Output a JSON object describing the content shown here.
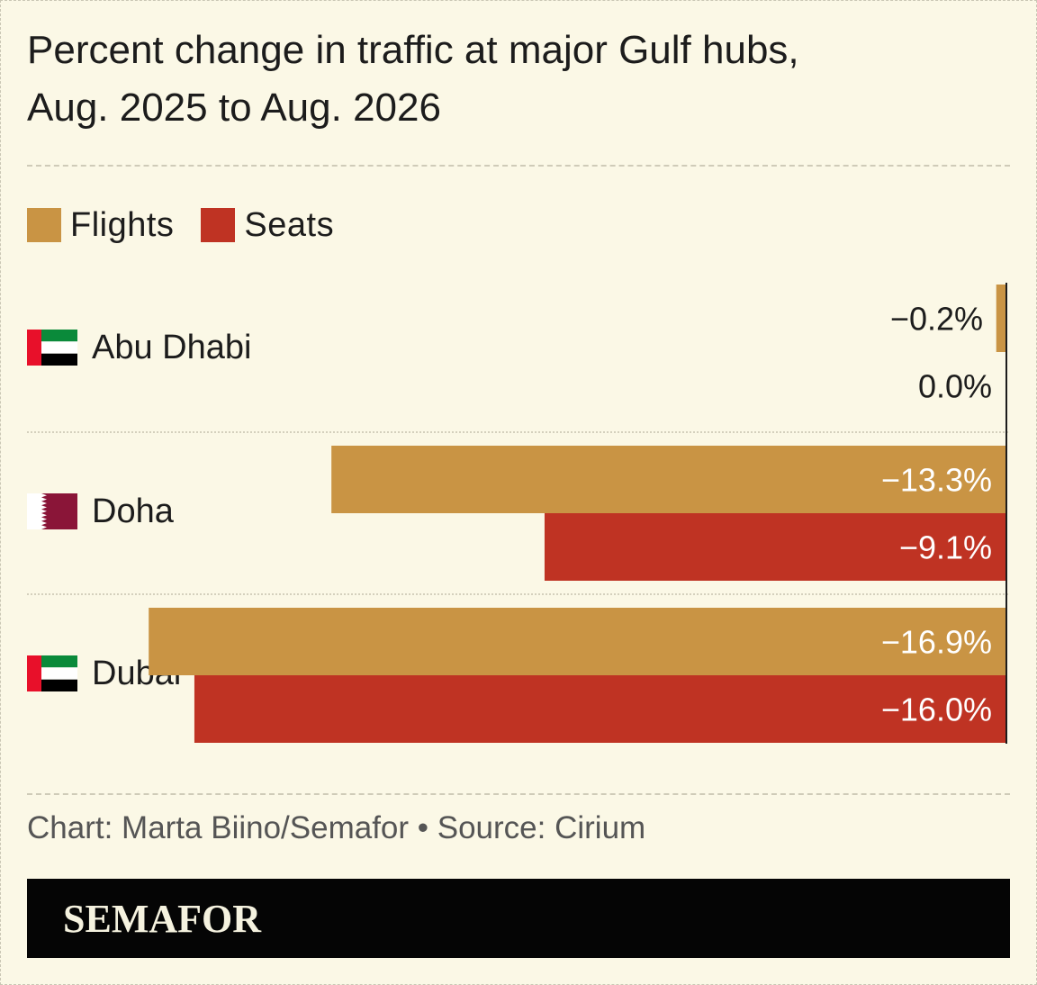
{
  "title_line1": "Percent change in traffic at major Gulf hubs,",
  "title_line2": "Aug. 2025 to Aug. 2026",
  "legend": [
    {
      "label": "Flights",
      "color": "#c99444"
    },
    {
      "label": "Seats",
      "color": "#bf3323"
    }
  ],
  "chart_data": {
    "type": "bar",
    "orientation": "horizontal",
    "categories": [
      "Abu Dhabi",
      "Doha",
      "Dubai"
    ],
    "series": [
      {
        "name": "Flights",
        "values": [
          -0.2,
          -13.3,
          -16.9
        ],
        "labels": [
          "−0.2%",
          "−13.3%",
          "−16.9%"
        ],
        "color": "#c99444"
      },
      {
        "name": "Seats",
        "values": [
          0.0,
          -9.1,
          -16.0
        ],
        "labels": [
          "0.0%",
          "−9.1%",
          "−16.0%"
        ],
        "color": "#bf3323"
      }
    ],
    "xlim": [
      -18.5,
      0
    ]
  },
  "hubs": [
    {
      "name": "Abu Dhabi",
      "flag": "uae-flag"
    },
    {
      "name": "Doha",
      "flag": "qatar-flag"
    },
    {
      "name": "Dubai",
      "flag": "uae-flag"
    }
  ],
  "source": "Chart: Marta Biino/Semafor • Source: Cirium",
  "brand": "SEMAFOR"
}
